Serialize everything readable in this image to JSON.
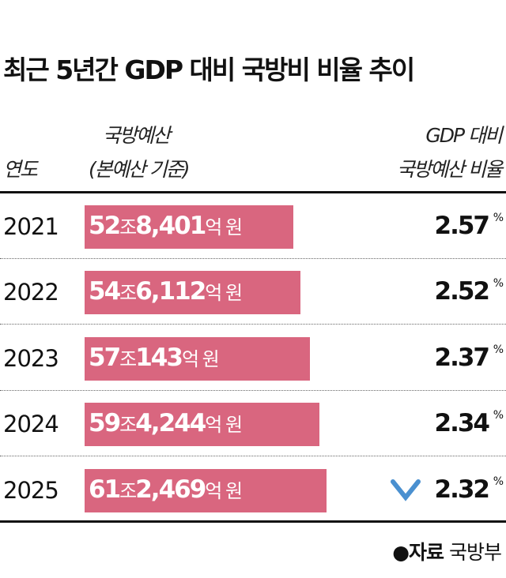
{
  "title": "최근 5년간 GDP 대비 국방비 비율 추이",
  "headers": {
    "year": "연도",
    "budget_line1": "국방예산",
    "budget_line2": "(본예산 기준)",
    "ratio_line1": "GDP 대비",
    "ratio_line2": "국방예산 비율"
  },
  "source": {
    "label": "●자료",
    "value": "국방부"
  },
  "colors": {
    "bar": "#d9667f",
    "arrow_top": "#d9667f",
    "arrow_bottom": "#4a90d0"
  },
  "chart_data": {
    "type": "table",
    "categories": [
      "2021",
      "2022",
      "2023",
      "2024",
      "2025"
    ],
    "series": [
      {
        "name": "국방예산",
        "values": [
          52.8401,
          54.6112,
          57.0143,
          59.4244,
          61.2469
        ]
      },
      {
        "name": "GDP 대비 국방예산 비율",
        "values": [
          2.57,
          2.52,
          2.37,
          2.34,
          2.32
        ]
      }
    ],
    "rows": [
      {
        "year": "2021",
        "jo": "52",
        "jo_unit": "조",
        "eok": "8,401",
        "eok_unit": "억 원",
        "ratio": "2.57",
        "pct": "%"
      },
      {
        "year": "2022",
        "jo": "54",
        "jo_unit": "조",
        "eok": "6,112",
        "eok_unit": "억 원",
        "ratio": "2.52",
        "pct": "%"
      },
      {
        "year": "2023",
        "jo": "57",
        "jo_unit": "조",
        "eok": "143",
        "eok_unit": "억 원",
        "ratio": "2.37",
        "pct": "%"
      },
      {
        "year": "2024",
        "jo": "59",
        "jo_unit": "조",
        "eok": "4,244",
        "eok_unit": "억 원",
        "ratio": "2.34",
        "pct": "%"
      },
      {
        "year": "2025",
        "jo": "61",
        "jo_unit": "조",
        "eok": "2,469",
        "eok_unit": "억 원",
        "ratio": "2.32",
        "pct": "%"
      }
    ],
    "trend": "down"
  }
}
